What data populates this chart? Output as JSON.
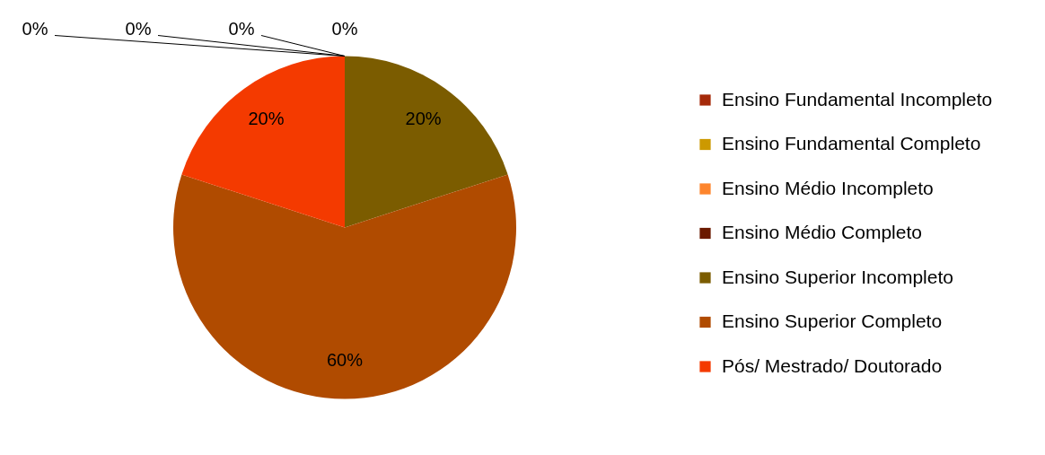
{
  "chart_data": {
    "type": "pie",
    "categories": [
      "Ensino Fundamental Incompleto",
      "Ensino Fundamental Completo",
      "Ensino Médio Incompleto",
      "Ensino Médio Completo",
      "Ensino Superior Incompleto",
      "Ensino Superior Completo",
      "Pós/ Mestrado/ Doutorado"
    ],
    "values": [
      0,
      0,
      0,
      0,
      20,
      60,
      20
    ],
    "colors": [
      "#a52a0a",
      "#cc9900",
      "#fd852d",
      "#6b1a00",
      "#7b5c00",
      "#b04b00",
      "#f43a00"
    ],
    "value_labels": [
      "0%",
      "0%",
      "0%",
      "0%",
      "20%",
      "60%",
      "20%"
    ],
    "legend": "right"
  }
}
